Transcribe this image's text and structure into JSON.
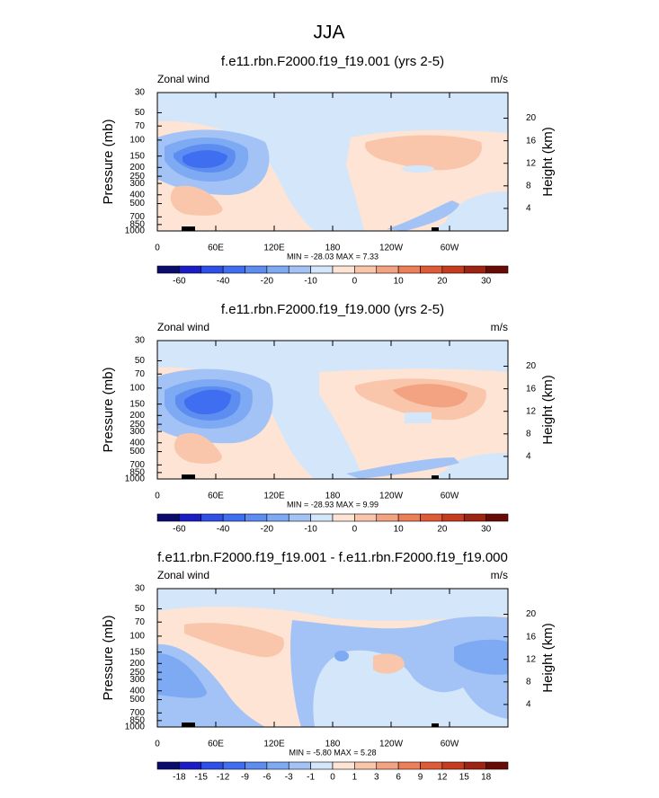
{
  "title": "JJA",
  "colorbar_colors": [
    "#0b0b6e",
    "#1c1cc4",
    "#2f4fe6",
    "#3f6ff0",
    "#5d8df0",
    "#7ea9f3",
    "#a3c3f6",
    "#d3e6fa",
    "#fde4d4",
    "#f9c6ab",
    "#f4a382",
    "#ec7f58",
    "#df5b37",
    "#c53c20",
    "#9e2313",
    "#6a0a06"
  ],
  "panels": [
    {
      "title": "f.e11.rbn.F2000.f19_f19.001 (yrs 2-5)",
      "left_label": "Zonal wind",
      "right_label": "m/s",
      "y_label": "Pressure (mb)",
      "y2_label": "Height (km)",
      "stats": "MIN = -28.03  MAX =  7.33",
      "ylim": [
        30,
        1000
      ],
      "yticks": [
        30,
        50,
        70,
        100,
        150,
        200,
        250,
        300,
        400,
        500,
        700,
        850,
        1000
      ],
      "y2ticks": [
        4,
        8,
        12,
        16,
        20
      ],
      "xlim": [
        0,
        360
      ],
      "xticks": [
        0,
        {
          "value": 60,
          "label": "60E"
        },
        {
          "value": 120,
          "label": "120E"
        },
        180,
        {
          "value": 240,
          "label": "120W"
        },
        {
          "value": 300,
          "label": "60W"
        }
      ],
      "colorbar_labels": [
        -60,
        null,
        -40,
        null,
        -20,
        null,
        -10,
        null,
        0,
        null,
        10,
        null,
        20,
        null,
        30
      ]
    },
    {
      "title": "f.e11.rbn.F2000.f19_f19.000 (yrs 2-5)",
      "left_label": "Zonal wind",
      "right_label": "m/s",
      "y_label": "Pressure (mb)",
      "y2_label": "Height (km)",
      "stats": "MIN = -28.93  MAX =  9.99",
      "ylim": [
        30,
        1000
      ],
      "yticks": [
        30,
        50,
        70,
        100,
        150,
        200,
        250,
        300,
        400,
        500,
        700,
        850,
        1000
      ],
      "y2ticks": [
        4,
        8,
        12,
        16,
        20
      ],
      "xlim": [
        0,
        360
      ],
      "xticks": [
        0,
        {
          "value": 60,
          "label": "60E"
        },
        {
          "value": 120,
          "label": "120E"
        },
        180,
        {
          "value": 240,
          "label": "120W"
        },
        {
          "value": 300,
          "label": "60W"
        }
      ],
      "colorbar_labels": [
        -60,
        null,
        -40,
        null,
        -20,
        null,
        -10,
        null,
        0,
        null,
        10,
        null,
        20,
        null,
        30
      ]
    },
    {
      "title": "f.e11.rbn.F2000.f19_f19.001 - f.e11.rbn.F2000.f19_f19.000",
      "left_label": "Zonal wind",
      "right_label": "m/s",
      "y_label": "Pressure (mb)",
      "y2_label": "Height (km)",
      "stats": "MIN = -5.80  MAX =  5.28",
      "ylim": [
        30,
        1000
      ],
      "yticks": [
        30,
        50,
        70,
        100,
        150,
        200,
        250,
        300,
        400,
        500,
        700,
        850,
        1000
      ],
      "y2ticks": [
        4,
        8,
        12,
        16,
        20
      ],
      "xlim": [
        0,
        360
      ],
      "xticks": [
        0,
        {
          "value": 60,
          "label": "60E"
        },
        {
          "value": 120,
          "label": "120E"
        },
        180,
        {
          "value": 240,
          "label": "120W"
        },
        {
          "value": 300,
          "label": "60W"
        }
      ],
      "colorbar_labels": [
        -18,
        -15,
        -12,
        -9,
        -6,
        -3,
        -1,
        0,
        1,
        3,
        6,
        9,
        12,
        15,
        18
      ]
    }
  ]
}
